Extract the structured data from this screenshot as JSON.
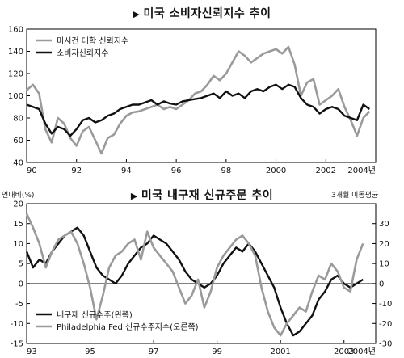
{
  "chart_data": [
    {
      "type": "line",
      "title": "미국 소비자신뢰지수 추이",
      "x_tick_labels": [
        "90",
        "92",
        "94",
        "96",
        "98",
        "2000",
        "2002",
        "2004년"
      ],
      "x_ticks": [
        1990,
        1992,
        1994,
        1996,
        1998,
        2000,
        2002,
        2004
      ],
      "xlim": [
        1990,
        2004
      ],
      "ylim": [
        40,
        160
      ],
      "y_ticks": [
        40,
        60,
        80,
        100,
        120,
        140,
        160
      ],
      "legend_position": "top-left",
      "series": [
        {
          "name": "미시건 대학 신뢰지수",
          "color": "#9a9a9a",
          "x": [
            1990.0,
            1990.25,
            1990.5,
            1990.75,
            1991.0,
            1991.25,
            1991.5,
            1991.75,
            1992.0,
            1992.25,
            1992.5,
            1992.75,
            1993.0,
            1993.25,
            1993.5,
            1993.75,
            1994.0,
            1994.25,
            1994.5,
            1994.75,
            1995.0,
            1995.25,
            1995.5,
            1995.75,
            1996.0,
            1996.25,
            1996.5,
            1996.75,
            1997.0,
            1997.25,
            1997.5,
            1997.75,
            1998.0,
            1998.25,
            1998.5,
            1998.75,
            1999.0,
            1999.25,
            1999.5,
            1999.75,
            2000.0,
            2000.25,
            2000.5,
            2000.75,
            2001.0,
            2001.25,
            2001.5,
            2001.75,
            2002.0,
            2002.25,
            2002.5,
            2002.75,
            2003.0,
            2003.25,
            2003.5,
            2003.75
          ],
          "values": [
            105,
            110,
            102,
            70,
            58,
            80,
            75,
            62,
            55,
            68,
            72,
            60,
            48,
            62,
            65,
            75,
            82,
            85,
            86,
            88,
            90,
            92,
            88,
            90,
            88,
            92,
            96,
            102,
            104,
            110,
            118,
            114,
            120,
            130,
            140,
            136,
            130,
            134,
            138,
            140,
            142,
            138,
            144,
            128,
            100,
            112,
            115,
            92,
            96,
            100,
            106,
            90,
            78,
            64,
            80,
            86
          ]
        },
        {
          "name": "소비자신뢰지수",
          "color": "#111111",
          "x": [
            1990.0,
            1990.25,
            1990.5,
            1990.75,
            1991.0,
            1991.25,
            1991.5,
            1991.75,
            1992.0,
            1992.25,
            1992.5,
            1992.75,
            1993.0,
            1993.25,
            1993.5,
            1993.75,
            1994.0,
            1994.25,
            1994.5,
            1994.75,
            1995.0,
            1995.25,
            1995.5,
            1995.75,
            1996.0,
            1996.25,
            1996.5,
            1996.75,
            1997.0,
            1997.25,
            1997.5,
            1997.75,
            1998.0,
            1998.25,
            1998.5,
            1998.75,
            1999.0,
            1999.25,
            1999.5,
            1999.75,
            2000.0,
            2000.25,
            2000.5,
            2000.75,
            2001.0,
            2001.25,
            2001.5,
            2001.75,
            2002.0,
            2002.25,
            2002.5,
            2002.75,
            2003.0,
            2003.25,
            2003.5,
            2003.75
          ],
          "values": [
            92,
            90,
            88,
            75,
            66,
            72,
            70,
            64,
            70,
            78,
            80,
            76,
            78,
            82,
            84,
            88,
            90,
            92,
            92,
            94,
            96,
            92,
            95,
            93,
            92,
            95,
            96,
            97,
            98,
            100,
            102,
            98,
            104,
            100,
            102,
            98,
            104,
            106,
            104,
            108,
            110,
            106,
            110,
            108,
            98,
            92,
            90,
            84,
            88,
            90,
            88,
            82,
            80,
            78,
            92,
            88
          ]
        }
      ]
    },
    {
      "type": "line",
      "title": "미국 내구재 신규주문 추이",
      "ylabel": "연대비(%)",
      "ylabel_right": "3개월 이동평균",
      "x_tick_labels": [
        "93",
        "95",
        "97",
        "99",
        "2001",
        "2003",
        "2004년"
      ],
      "x_ticks": [
        1993,
        1995,
        1997,
        1999,
        2001,
        2003,
        2004
      ],
      "xlim": [
        1993,
        2004
      ],
      "ylim": [
        -15,
        20
      ],
      "y_ticks": [
        -15,
        -10,
        -5,
        0,
        5,
        10,
        15,
        20
      ],
      "ylim_right": [
        -30,
        40
      ],
      "y_ticks_right": [
        -30,
        -20,
        -10,
        0,
        10,
        20,
        30
      ],
      "legend_position": "bottom-left",
      "series": [
        {
          "name": "내구재 신규수주(왼쪽)",
          "color": "#111111",
          "axis": "left",
          "x": [
            1993.0,
            1993.2,
            1993.4,
            1993.6,
            1993.8,
            1994.0,
            1994.2,
            1994.4,
            1994.6,
            1994.8,
            1995.0,
            1995.2,
            1995.4,
            1995.6,
            1995.8,
            1996.0,
            1996.2,
            1996.4,
            1996.6,
            1996.8,
            1997.0,
            1997.2,
            1997.4,
            1997.6,
            1997.8,
            1998.0,
            1998.2,
            1998.4,
            1998.6,
            1998.8,
            1999.0,
            1999.2,
            1999.4,
            1999.6,
            1999.8,
            2000.0,
            2000.2,
            2000.4,
            2000.6,
            2000.8,
            2001.0,
            2001.2,
            2001.4,
            2001.6,
            2001.8,
            2002.0,
            2002.2,
            2002.4,
            2002.6,
            2002.8,
            2003.0,
            2003.2,
            2003.4,
            2003.6
          ],
          "values": [
            8,
            4,
            6,
            5,
            8,
            10,
            12,
            13,
            14,
            12,
            8,
            4,
            2,
            1,
            0,
            2,
            5,
            7,
            9,
            10,
            12,
            11,
            10,
            8,
            6,
            3,
            1,
            0,
            -1,
            0,
            2,
            5,
            7,
            9,
            8,
            10,
            8,
            5,
            2,
            -1,
            -6,
            -10,
            -13,
            -12,
            -10,
            -8,
            -4,
            -2,
            1,
            2,
            0,
            -1,
            0,
            1
          ]
        },
        {
          "name": "Philadelphia Fed 신규수주지수(오른쪽)",
          "color": "#9a9a9a",
          "axis": "right",
          "x": [
            1993.0,
            1993.2,
            1993.4,
            1993.6,
            1993.8,
            1994.0,
            1994.2,
            1994.4,
            1994.6,
            1994.8,
            1995.0,
            1995.2,
            1995.4,
            1995.6,
            1995.8,
            1996.0,
            1996.2,
            1996.4,
            1996.6,
            1996.8,
            1997.0,
            1997.2,
            1997.4,
            1997.6,
            1997.8,
            1998.0,
            1998.2,
            1998.4,
            1998.6,
            1998.8,
            1999.0,
            1999.2,
            1999.4,
            1999.6,
            1999.8,
            2000.0,
            2000.2,
            2000.4,
            2000.6,
            2000.8,
            2001.0,
            2001.2,
            2001.4,
            2001.6,
            2001.8,
            2002.0,
            2002.2,
            2002.4,
            2002.6,
            2002.8,
            2003.0,
            2003.2,
            2003.4,
            2003.6
          ],
          "values": [
            35,
            28,
            20,
            8,
            16,
            22,
            24,
            26,
            20,
            10,
            -2,
            -18,
            -6,
            8,
            14,
            16,
            20,
            22,
            12,
            26,
            18,
            14,
            10,
            6,
            -2,
            -10,
            -6,
            2,
            -12,
            -4,
            8,
            14,
            18,
            22,
            24,
            20,
            14,
            -2,
            -14,
            -22,
            -26,
            -20,
            -16,
            -12,
            -14,
            -4,
            4,
            2,
            10,
            6,
            -2,
            -4,
            12,
            20
          ]
        }
      ]
    }
  ]
}
